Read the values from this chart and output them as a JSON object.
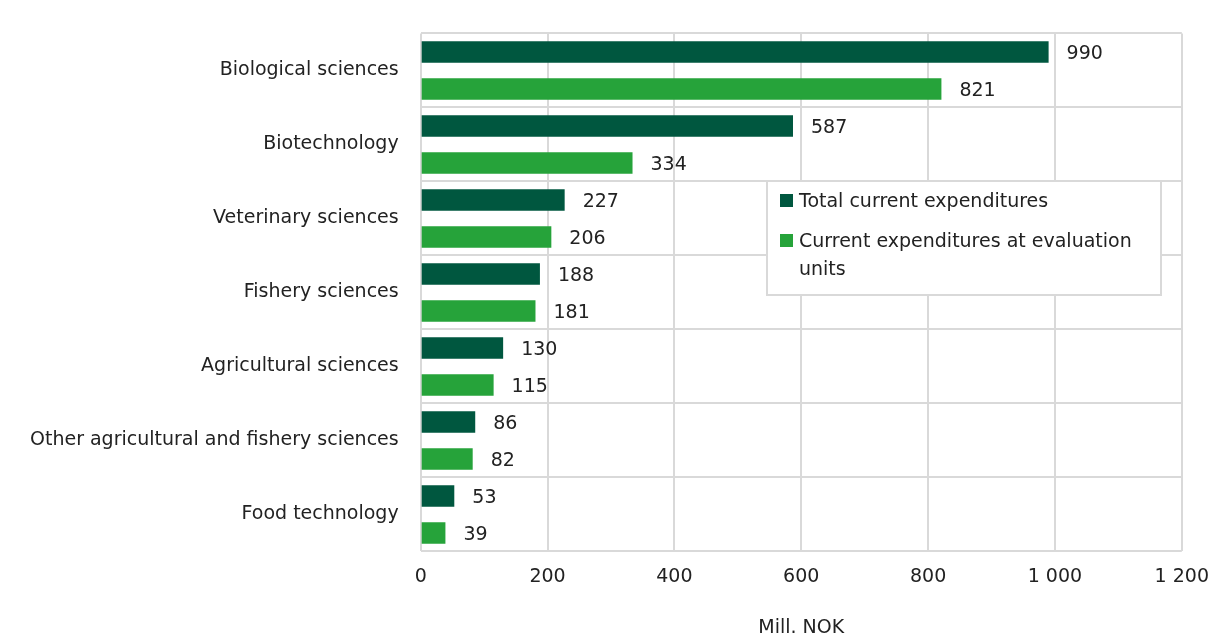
{
  "chart_data": {
    "type": "bar",
    "orientation": "horizontal",
    "xlabel": "Mill. NOK",
    "categories": [
      "Biological sciences",
      "Biotechnology",
      "Veterinary sciences",
      "Fishery sciences",
      "Agricultural sciences",
      "Other agricultural and fishery sciences",
      "Food technology"
    ],
    "series": [
      {
        "name": "Total current expenditures",
        "color": "#00573f",
        "values": [
          990,
          587,
          227,
          188,
          130,
          86,
          53
        ]
      },
      {
        "name": "Current expenditures at evaluation units",
        "color": "#26a33a",
        "values": [
          821,
          334,
          206,
          181,
          115,
          82,
          39
        ]
      }
    ],
    "xlim": [
      0,
      1200
    ],
    "xticks": [
      0,
      200,
      400,
      600,
      800,
      {
        "value": 1000,
        "label": "1 000"
      },
      {
        "value": 1200,
        "label": "1 200"
      }
    ],
    "grid": true,
    "legend": "right",
    "data_labels": true
  }
}
